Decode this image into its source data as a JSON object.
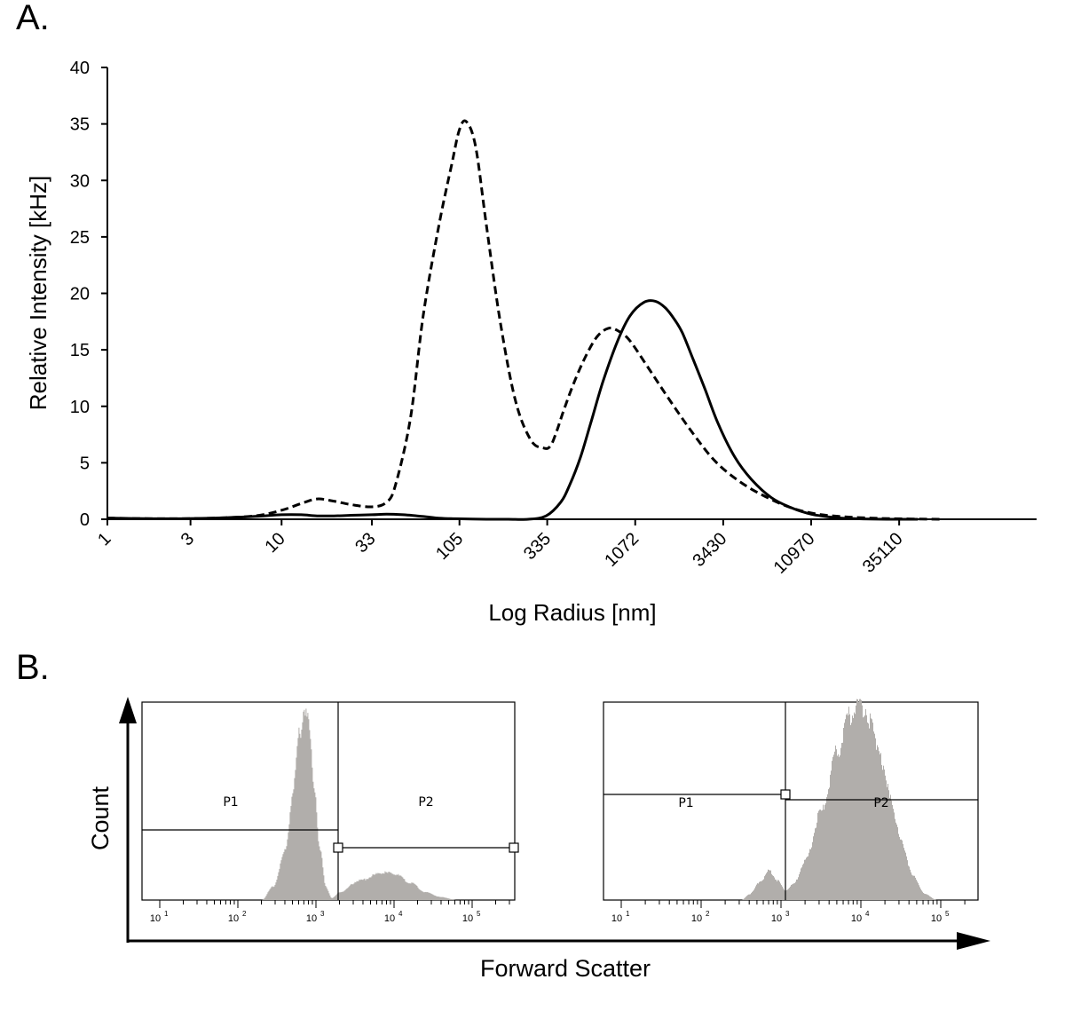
{
  "panel_a_label": "A.",
  "panel_b_label": "B.",
  "chart_data": [
    {
      "type": "line",
      "xscale": "log",
      "xlabel": "Log Radius [nm]",
      "ylabel": "Relative Intensity [kHz]",
      "ylim": [
        0,
        40
      ],
      "yticks": [
        0,
        5,
        10,
        15,
        20,
        25,
        30,
        35,
        40
      ],
      "xticks": [
        "1",
        "3",
        "10",
        "33",
        "105",
        "335",
        "1072",
        "3430",
        "10970",
        "35110"
      ],
      "series": [
        {
          "name": "dashed",
          "style": "dashed",
          "x": [
            1,
            2,
            4,
            7,
            10,
            13,
            16,
            20,
            25,
            33,
            40,
            45,
            55,
            65,
            80,
            95,
            105,
            115,
            130,
            150,
            180,
            220,
            270,
            320,
            350,
            380,
            420,
            480,
            560,
            650,
            750,
            850,
            1000,
            1300,
            1700,
            2300,
            3100,
            4300,
            6000,
            8500,
            12000,
            18000,
            27000,
            40000,
            60000
          ],
          "y": [
            0.1,
            0.05,
            0.1,
            0.3,
            0.8,
            1.4,
            1.8,
            1.6,
            1.3,
            1.1,
            1.5,
            3.0,
            9.0,
            18.0,
            26.0,
            31.5,
            34.5,
            35.2,
            33.0,
            26.0,
            17.5,
            10.5,
            7.0,
            6.3,
            6.5,
            7.8,
            9.8,
            12.2,
            14.5,
            16.2,
            16.9,
            16.7,
            15.8,
            13.2,
            10.5,
            7.6,
            5.1,
            3.3,
            2.0,
            1.0,
            0.45,
            0.2,
            0.08,
            0.03,
            0.0
          ]
        },
        {
          "name": "solid",
          "style": "solid",
          "x": [
            1,
            2,
            4,
            7,
            10,
            13,
            16,
            20,
            25,
            33,
            40,
            50,
            60,
            70,
            80,
            100,
            150,
            200,
            260,
            330,
            400,
            450,
            520,
            600,
            700,
            850,
            1000,
            1200,
            1400,
            1600,
            1800,
            2000,
            2300,
            2700,
            3200,
            4000,
            5000,
            6500,
            8500,
            11000,
            15000,
            20000,
            30000,
            45000
          ],
          "y": [
            0.1,
            0.05,
            0.1,
            0.25,
            0.4,
            0.4,
            0.3,
            0.3,
            0.35,
            0.4,
            0.45,
            0.4,
            0.3,
            0.2,
            0.1,
            0.05,
            0.0,
            0.0,
            0.0,
            0.3,
            1.5,
            3.0,
            5.5,
            8.7,
            12.2,
            15.8,
            18.0,
            19.2,
            19.3,
            18.7,
            17.7,
            16.5,
            14.2,
            11.5,
            8.5,
            5.5,
            3.5,
            1.9,
            1.0,
            0.45,
            0.15,
            0.05,
            0.0,
            0.0
          ]
        }
      ]
    },
    {
      "type": "histogram",
      "xscale": "log",
      "xlabel": "Forward Scatter",
      "ylabel": "Count",
      "xtick_base": "10",
      "xtick_exps": [
        "1",
        "2",
        "3",
        "4",
        "5"
      ],
      "gates": [
        {
          "label": "P1"
        },
        {
          "label": "P2"
        }
      ],
      "profile": [
        {
          "logx": 2.3,
          "h": 0.0
        },
        {
          "logx": 2.45,
          "h": 0.07
        },
        {
          "logx": 2.6,
          "h": 0.25
        },
        {
          "logx": 2.7,
          "h": 0.55
        },
        {
          "logx": 2.78,
          "h": 0.85
        },
        {
          "logx": 2.85,
          "h": 1.0
        },
        {
          "logx": 2.9,
          "h": 0.9
        },
        {
          "logx": 2.97,
          "h": 0.6
        },
        {
          "logx": 3.05,
          "h": 0.25
        },
        {
          "logx": 3.12,
          "h": 0.07
        },
        {
          "logx": 3.2,
          "h": 0.01
        },
        {
          "logx": 3.3,
          "h": 0.04
        },
        {
          "logx": 3.55,
          "h": 0.1
        },
        {
          "logx": 3.85,
          "h": 0.14
        },
        {
          "logx": 4.0,
          "h": 0.135
        },
        {
          "logx": 4.2,
          "h": 0.09
        },
        {
          "logx": 4.4,
          "h": 0.04
        },
        {
          "logx": 4.6,
          "h": 0.015
        },
        {
          "logx": 4.8,
          "h": 0.0
        }
      ]
    },
    {
      "type": "histogram",
      "xscale": "log",
      "xlabel": "Forward Scatter",
      "ylabel": "Count",
      "xtick_base": "10",
      "xtick_exps": [
        "1",
        "2",
        "3",
        "4",
        "5"
      ],
      "gates": [
        {
          "label": "P1"
        },
        {
          "label": "P2"
        }
      ],
      "profile": [
        {
          "logx": 2.5,
          "h": 0.0
        },
        {
          "logx": 2.6,
          "h": 0.03
        },
        {
          "logx": 2.75,
          "h": 0.1
        },
        {
          "logx": 2.85,
          "h": 0.15
        },
        {
          "logx": 2.95,
          "h": 0.1
        },
        {
          "logx": 3.05,
          "h": 0.05
        },
        {
          "logx": 3.15,
          "h": 0.08
        },
        {
          "logx": 3.3,
          "h": 0.2
        },
        {
          "logx": 3.5,
          "h": 0.45
        },
        {
          "logx": 3.7,
          "h": 0.75
        },
        {
          "logx": 3.85,
          "h": 0.93
        },
        {
          "logx": 3.95,
          "h": 1.0
        },
        {
          "logx": 4.05,
          "h": 0.97
        },
        {
          "logx": 4.2,
          "h": 0.8
        },
        {
          "logx": 4.35,
          "h": 0.55
        },
        {
          "logx": 4.5,
          "h": 0.3
        },
        {
          "logx": 4.65,
          "h": 0.12
        },
        {
          "logx": 4.8,
          "h": 0.03
        },
        {
          "logx": 4.95,
          "h": 0.0
        }
      ]
    }
  ]
}
